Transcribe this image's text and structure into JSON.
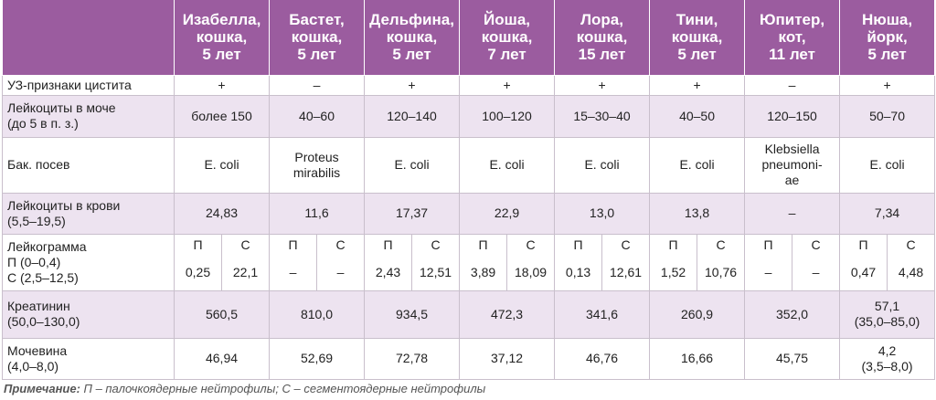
{
  "header": {
    "columns": [
      "Изабелла,\nкошка,\n5 лет",
      "Бастет,\nкошка,\n5 лет",
      "Дельфина,\nкошка,\n5 лет",
      "Йоша,\nкошка,\n7 лет",
      "Лора,\nкошка,\n15 лет",
      "Тини,\nкошка,\n5 лет",
      "Юпитер,\nкот,\n11 лет",
      "Нюша,\nйорк,\n5 лет"
    ]
  },
  "rows": [
    {
      "label": "УЗ-признаки цистита",
      "values": [
        "+",
        "–",
        "+",
        "+",
        "+",
        "+",
        "–",
        "+"
      ]
    },
    {
      "label": "Лейкоциты в моче\n(до 5 в п. з.)",
      "values": [
        "более 150",
        "40–60",
        "120–140",
        "100–120",
        "15–30–40",
        "40–50",
        "120–150",
        "50–70"
      ]
    },
    {
      "label": "Бак. посев",
      "values": [
        "E. coli",
        "Proteus\nmirabilis",
        "E. coli",
        "E. coli",
        "E. coli",
        "E. coli",
        "Klebsiella\npneumoni-\nae",
        "E. coli"
      ]
    },
    {
      "label": "Лейкоциты в крови\n(5,5–19,5)",
      "values": [
        "24,83",
        "11,6",
        "17,37",
        "22,9",
        "13,0",
        "13,8",
        "–",
        "7,34"
      ]
    }
  ],
  "leukogram": {
    "label": "Лейкограмма\nП (0–0,4)\nС (2,5–12,5)",
    "sub_labels": [
      "П",
      "С"
    ],
    "values": [
      [
        "0,25",
        "22,1"
      ],
      [
        "–",
        "–"
      ],
      [
        "2,43",
        "12,51"
      ],
      [
        "3,89",
        "18,09"
      ],
      [
        "0,13",
        "12,61"
      ],
      [
        "1,52",
        "10,76"
      ],
      [
        "–",
        "–"
      ],
      [
        "0,47",
        "4,48"
      ]
    ]
  },
  "rows_after": [
    {
      "label": "Креатинин\n(50,0–130,0)",
      "values": [
        "560,5",
        "810,0",
        "934,5",
        "472,3",
        "341,6",
        "260,9",
        "352,0",
        "57,1\n(35,0–85,0)"
      ]
    },
    {
      "label": "Мочевина\n(4,0–8,0)",
      "values": [
        "46,94",
        "52,69",
        "72,78",
        "37,12",
        "46,76",
        "16,66",
        "45,75",
        "4,2\n(3,5–8,0)"
      ]
    }
  ],
  "note": {
    "label": "Примечание:",
    "text": " П – палочкоядерные нейтрофилы; С – сегментоядерные нейтрофилы"
  }
}
